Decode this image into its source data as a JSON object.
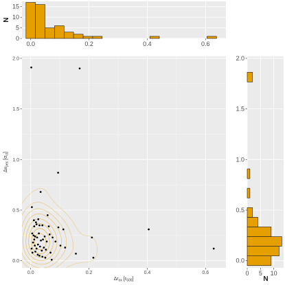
{
  "chart_data": [
    {
      "type": "bar",
      "role": "top-histogram-x",
      "bin_width": 0.0327,
      "bin_start": -0.0163,
      "counts": [
        17,
        16,
        5,
        6,
        3,
        2,
        1,
        1,
        0,
        0,
        0,
        0,
        0,
        1,
        0,
        0,
        0,
        0,
        0,
        1
      ],
      "xlim": [
        -0.03,
        0.67
      ],
      "ylim": [
        0,
        17.5
      ],
      "x_ticks": [
        0.0,
        0.2,
        0.4,
        0.6
      ],
      "x_tick_labels": [
        "0.0",
        "0.2",
        "0.4",
        "0.6"
      ],
      "y_ticks": [
        0,
        5,
        10,
        15
      ],
      "y_tick_labels": [
        "0",
        "5",
        "10",
        "15"
      ],
      "ylabel": "N",
      "fill_color": "#E69F00",
      "edge_color": "#1a1a1a"
    },
    {
      "type": "scatter",
      "role": "main-scatter-with-density-contours",
      "x": [
        0.002,
        0.168,
        0.094,
        0.034,
        0.004,
        0.011,
        0.018,
        0.026,
        0.03,
        0.058,
        0.012,
        0.02,
        0.04,
        0.062,
        0.095,
        0.112,
        0.21,
        0.405,
        0.628,
        0.005,
        0.01,
        0.015,
        0.022,
        0.028,
        0.035,
        0.042,
        0.048,
        0.055,
        0.065,
        0.075,
        0.085,
        0.102,
        0.118,
        0.155,
        0.215,
        0.008,
        0.014,
        0.02,
        0.025,
        0.032,
        0.038,
        0.045,
        0.052,
        0.068,
        0.006,
        0.016,
        0.024,
        0.03,
        0.04,
        0.05,
        0.072,
        0.003,
        0.012
      ],
      "y": [
        1.91,
        1.9,
        0.87,
        0.68,
        0.53,
        0.4,
        0.38,
        0.41,
        0.35,
        0.45,
        0.34,
        0.36,
        0.35,
        0.34,
        0.33,
        0.31,
        0.23,
        0.31,
        0.12,
        0.27,
        0.25,
        0.24,
        0.23,
        0.27,
        0.2,
        0.21,
        0.24,
        0.19,
        0.26,
        0.23,
        0.19,
        0.15,
        0.13,
        0.07,
        0.03,
        0.18,
        0.15,
        0.12,
        0.16,
        0.14,
        0.1,
        0.13,
        0.11,
        0.08,
        0.08,
        0.09,
        0.06,
        0.05,
        0.04,
        0.03,
        0.01,
        0.12,
        0.21
      ],
      "contour_color": "#E69F00",
      "point_color": "#000000",
      "xlim": [
        -0.03,
        0.67
      ],
      "ylim": [
        -0.07,
        2.02
      ],
      "x_ticks": [
        0.0,
        0.2,
        0.4,
        0.6
      ],
      "x_tick_labels": [
        "0.0",
        "0.2",
        "0.4",
        "0.6"
      ],
      "y_ticks": [
        0.0,
        0.5,
        1.0,
        1.5,
        2.0
      ],
      "y_tick_labels": [
        "0.0",
        "0.5",
        "1.0",
        "1.5",
        "2.0"
      ],
      "xlabel": "Δr_ox [r_500]",
      "ylabel": "Δv_pec [σ_cl]",
      "grid": true
    },
    {
      "type": "bar",
      "role": "right-histogram-y",
      "orientation": "horizontal",
      "bin_width": 0.0955,
      "bin_start": -0.0478,
      "counts": [
        9,
        12,
        13,
        9,
        4,
        2,
        0,
        1,
        0,
        1,
        0,
        0,
        0,
        0,
        0,
        0,
        0,
        0,
        0,
        2
      ],
      "ylim": [
        -0.07,
        2.02
      ],
      "xlim": [
        0,
        13.7
      ],
      "y_ticks": [
        0.0,
        0.5,
        1.0,
        1.5,
        2.0
      ],
      "y_tick_labels": [
        "0.0",
        "0.5",
        "1.0",
        "1.5",
        "2.0"
      ],
      "x_ticks": [
        0,
        5,
        10
      ],
      "x_tick_labels": [
        "0",
        "5",
        "10"
      ],
      "xlabel": "N",
      "fill_color": "#E69F00",
      "edge_color": "#1a1a1a"
    }
  ],
  "colors": {
    "panel_background": "#EBEBEB",
    "grid_major": "#FFFFFF",
    "bar_fill": "#E69F00",
    "contour": "#E69F00"
  },
  "labels": {
    "top_y": "N",
    "right_x": "N",
    "main_x": "Δr",
    "main_x_sub": "ox",
    "main_x_unit_open": " [r",
    "main_x_unit_sub": "500",
    "main_x_unit_close": "]",
    "main_y": "Δv",
    "main_y_sub": "pec",
    "main_y_unit_open": " [σ",
    "main_y_unit_sub": "cl",
    "main_y_unit_close": "]"
  }
}
